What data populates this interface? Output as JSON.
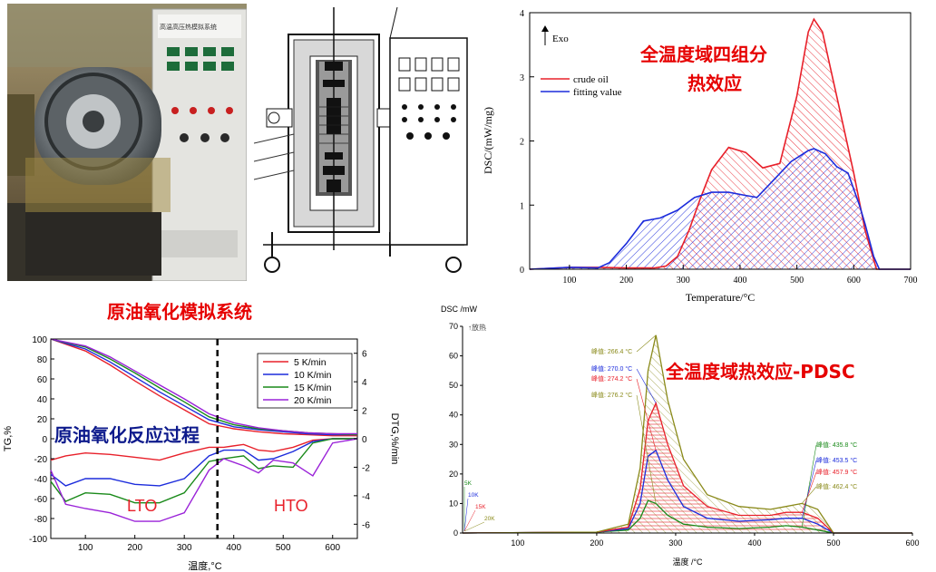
{
  "captions": {
    "system": "原油氧化模拟系统",
    "process": "原油氧化反应过程",
    "four_group": "全温度域四组分",
    "four_group_2": "热效应",
    "pdsc": "全温度域热效应-PDSC"
  },
  "apparatus": {
    "panel_title": "高温高压热模拟系统"
  },
  "colors": {
    "caption_red": "#e60000",
    "caption_navy": "#0d1a8c",
    "series_red": "#e8202a",
    "series_blue": "#1c2cdc",
    "series_green": "#1a8a1a",
    "series_purple": "#9a22d8",
    "series_olive": "#8a8a1a"
  },
  "chart_data": [
    {
      "type": "area",
      "id": "dsc_four_component",
      "ylabel": "DSC/(mW/mg)",
      "xlabel": "Temperature/°C",
      "annotation": "Exo",
      "xlim": [
        30,
        700
      ],
      "ylim": [
        0,
        4
      ],
      "xticks": [
        "100",
        "200",
        "300",
        "400",
        "500",
        "600",
        "700"
      ],
      "yticks": [
        "0",
        "1",
        "2",
        "3",
        "4"
      ],
      "legend_position": "top-left",
      "series": [
        {
          "name": "crude oil",
          "color": "#e8202a",
          "x": [
            30,
            100,
            150,
            200,
            250,
            270,
            290,
            310,
            330,
            350,
            380,
            410,
            440,
            470,
            500,
            520,
            530,
            545,
            560,
            580,
            600,
            620,
            640,
            700
          ],
          "y": [
            0.0,
            0.03,
            0.03,
            0.02,
            0.02,
            0.05,
            0.2,
            0.6,
            1.1,
            1.55,
            1.9,
            1.82,
            1.58,
            1.65,
            2.7,
            3.7,
            3.9,
            3.7,
            3.1,
            2.3,
            1.5,
            0.6,
            0.0,
            0.0
          ]
        },
        {
          "name": "fitting value",
          "color": "#1c2cdc",
          "x": [
            30,
            100,
            150,
            170,
            200,
            230,
            260,
            290,
            320,
            350,
            380,
            410,
            430,
            460,
            490,
            520,
            530,
            550,
            570,
            590,
            600,
            610,
            620,
            635,
            645,
            700
          ],
          "y": [
            0.0,
            0.03,
            0.02,
            0.1,
            0.4,
            0.75,
            0.8,
            0.92,
            1.12,
            1.2,
            1.2,
            1.15,
            1.12,
            1.4,
            1.68,
            1.85,
            1.88,
            1.8,
            1.6,
            1.5,
            1.25,
            1.0,
            0.7,
            0.2,
            0.0,
            0.0
          ]
        }
      ]
    },
    {
      "type": "line",
      "id": "tg_dtg",
      "xlabel": "温度,°C",
      "ylabel": "TG,%",
      "ylabel_right": "DTG,%/min",
      "xlim": [
        30,
        650
      ],
      "ylim": [
        -100,
        100
      ],
      "ylim_right": [
        -7,
        7
      ],
      "xticks": [
        "100",
        "200",
        "300",
        "400",
        "500",
        "600"
      ],
      "yticks": [
        "100",
        "80",
        "60",
        "40",
        "20",
        "0",
        "-20",
        "-40",
        "-60",
        "-80",
        "-100"
      ],
      "yticks_right": [
        "6",
        "4",
        "2",
        "0",
        "-2",
        "-4",
        "-6"
      ],
      "legend_position": "top-right",
      "divider_x": 367,
      "region_labels": [
        "LTO",
        "HTO"
      ],
      "series": [
        {
          "name": "5 K/min",
          "color": "#e8202a",
          "tg_x": [
            30,
            100,
            150,
            200,
            250,
            300,
            350,
            400,
            450,
            500,
            550,
            600,
            650
          ],
          "tg_y": [
            100,
            88,
            74,
            58,
            43,
            29,
            15,
            10,
            7,
            5,
            4,
            3,
            3
          ],
          "dtg_x": [
            30,
            60,
            100,
            150,
            200,
            250,
            300,
            350,
            380,
            420,
            450,
            480,
            520,
            560,
            600,
            650
          ],
          "dtg_y": [
            -1.5,
            -1.2,
            -1.0,
            -1.1,
            -1.3,
            -1.5,
            -1.0,
            -0.6,
            -0.6,
            -0.4,
            -0.8,
            -0.9,
            -0.6,
            -0.1,
            0,
            0
          ]
        },
        {
          "name": "10 K/min",
          "color": "#1c2cdc",
          "tg_x": [
            30,
            100,
            150,
            200,
            250,
            300,
            350,
            400,
            450,
            500,
            550,
            600,
            650
          ],
          "tg_y": [
            100,
            90,
            77,
            62,
            47,
            33,
            19,
            12,
            9,
            7,
            5,
            4,
            4
          ],
          "dtg_x": [
            30,
            60,
            100,
            150,
            200,
            250,
            300,
            350,
            380,
            420,
            450,
            480,
            520,
            560,
            600,
            650
          ],
          "dtg_y": [
            -2.5,
            -3.3,
            -2.8,
            -2.8,
            -3.2,
            -3.3,
            -2.8,
            -1.2,
            -0.8,
            -0.8,
            -1.5,
            -1.4,
            -0.9,
            -0.2,
            0,
            0
          ]
        },
        {
          "name": "15 K/min",
          "color": "#1a8a1a",
          "tg_x": [
            30,
            100,
            150,
            200,
            250,
            300,
            350,
            400,
            450,
            500,
            550,
            600,
            650
          ],
          "tg_y": [
            100,
            92,
            80,
            66,
            51,
            37,
            22,
            14,
            10,
            8,
            6,
            5,
            4
          ],
          "dtg_x": [
            30,
            60,
            100,
            150,
            200,
            250,
            300,
            350,
            380,
            420,
            450,
            480,
            520,
            560,
            600,
            650
          ],
          "dtg_y": [
            -3.0,
            -4.4,
            -3.8,
            -3.9,
            -4.5,
            -4.5,
            -3.8,
            -1.6,
            -1.4,
            -1.2,
            -2.1,
            -1.9,
            -2.0,
            -0.3,
            0,
            0
          ]
        },
        {
          "name": "20 K/min",
          "color": "#9a22d8",
          "tg_x": [
            30,
            100,
            150,
            200,
            250,
            300,
            350,
            400,
            450,
            500,
            550,
            600,
            650
          ],
          "tg_y": [
            100,
            93,
            82,
            68,
            54,
            40,
            25,
            16,
            11,
            8,
            6,
            5,
            5
          ],
          "dtg_x": [
            30,
            60,
            100,
            150,
            200,
            250,
            300,
            350,
            380,
            420,
            450,
            480,
            520,
            560,
            600,
            650
          ],
          "dtg_y": [
            -2.2,
            -4.6,
            -4.9,
            -5.2,
            -5.8,
            -5.8,
            -5.2,
            -2.2,
            -1.4,
            -1.9,
            -2.4,
            -1.5,
            -1.7,
            -2.6,
            -0.3,
            0
          ]
        }
      ]
    },
    {
      "type": "area",
      "id": "pdsc",
      "ylabel": "DSC /mW",
      "annotation": "↑放热",
      "xlabel": "温度 /°C",
      "xlim": [
        30,
        600
      ],
      "ylim": [
        0,
        70
      ],
      "xticks": [
        "100",
        "200",
        "300",
        "400",
        "500",
        "600"
      ],
      "yticks": [
        "0",
        "10",
        "20",
        "30",
        "40",
        "50",
        "60",
        "70"
      ],
      "rate_labels": [
        "5K",
        "10K",
        "15K",
        "20K"
      ],
      "peak_labels_low": [
        {
          "text": "峰值: 266.4 °C",
          "color": "#8a8a1a"
        },
        {
          "text": "峰值: 270.0 °C",
          "color": "#1c2cdc"
        },
        {
          "text": "峰值: 274.2 °C",
          "color": "#e8202a"
        },
        {
          "text": "峰值: 276.2 °C",
          "color": "#8a8a1a"
        }
      ],
      "peak_labels_high": [
        {
          "text": "峰值: 435.8 °C",
          "color": "#1a8a1a"
        },
        {
          "text": "峰值: 453.5 °C",
          "color": "#1c2cdc"
        },
        {
          "text": "峰值: 457.9 °C",
          "color": "#e8202a"
        },
        {
          "text": "峰值: 462.4 °C",
          "color": "#8a8a1a"
        }
      ],
      "series": [
        {
          "name": "5K",
          "color": "#1a8a1a",
          "x": [
            30,
            200,
            240,
            255,
            265,
            275,
            290,
            310,
            340,
            380,
            420,
            440,
            460,
            480,
            500,
            600
          ],
          "y": [
            0,
            0.3,
            1,
            5,
            11,
            10,
            6,
            3,
            2,
            1.5,
            2,
            2.5,
            2,
            1,
            0,
            0
          ]
        },
        {
          "name": "10K",
          "color": "#1c2cdc",
          "x": [
            30,
            200,
            240,
            255,
            265,
            275,
            290,
            310,
            340,
            380,
            420,
            440,
            460,
            480,
            500,
            600
          ],
          "y": [
            0,
            0.3,
            1.5,
            10,
            26,
            28,
            18,
            9,
            5,
            4,
            4.5,
            5,
            5,
            3,
            0,
            0
          ]
        },
        {
          "name": "15K",
          "color": "#e8202a",
          "x": [
            30,
            200,
            240,
            255,
            265,
            275,
            290,
            310,
            340,
            380,
            420,
            440,
            460,
            480,
            500,
            600
          ],
          "y": [
            0,
            0.3,
            2,
            15,
            38,
            44,
            30,
            16,
            9,
            6,
            6,
            7,
            7,
            5,
            0,
            0
          ]
        },
        {
          "name": "20K",
          "color": "#8a8a1a",
          "x": [
            30,
            200,
            240,
            255,
            265,
            275,
            290,
            310,
            340,
            380,
            420,
            440,
            460,
            480,
            500,
            600
          ],
          "y": [
            0,
            0.3,
            3,
            22,
            55,
            67,
            45,
            25,
            13,
            9,
            8,
            9,
            10,
            8,
            0,
            0
          ]
        }
      ]
    }
  ]
}
